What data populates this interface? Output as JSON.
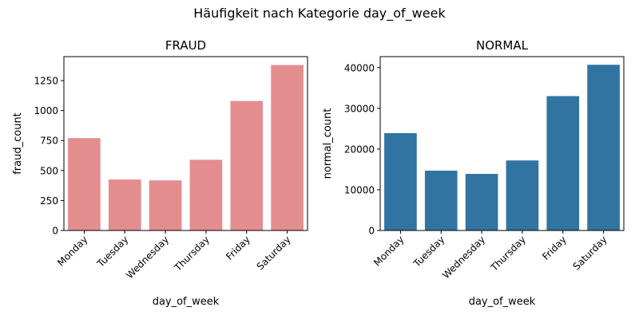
{
  "figure": {
    "suptitle": "Häufigkeit nach Kategorie day_of_week"
  },
  "chart_data": [
    {
      "type": "bar",
      "title": "FRAUD",
      "xlabel": "day_of_week",
      "ylabel": "fraud_count",
      "categories": [
        "Monday",
        "Tuesday",
        "Wednesday",
        "Thursday",
        "Friday",
        "Saturday"
      ],
      "values": [
        770,
        425,
        418,
        590,
        1080,
        1380
      ],
      "ylim": [
        0,
        1450
      ],
      "yticks": [
        0,
        250,
        500,
        750,
        1000,
        1250
      ],
      "ytick_labels": [
        "0",
        "250",
        "500",
        "750",
        "1000",
        "1250"
      ],
      "color": "#e38d8f",
      "grid": false
    },
    {
      "type": "bar",
      "title": "NORMAL",
      "xlabel": "day_of_week",
      "ylabel": "normal_count",
      "categories": [
        "Monday",
        "Tuesday",
        "Wednesday",
        "Thursday",
        "Friday",
        "Saturday"
      ],
      "values": [
        23900,
        14700,
        13900,
        17200,
        33000,
        40700
      ],
      "ylim": [
        0,
        42700
      ],
      "yticks": [
        0,
        10000,
        20000,
        30000,
        40000
      ],
      "ytick_labels": [
        "0",
        "10000",
        "20000",
        "30000",
        "40000"
      ],
      "color": "#3274a1",
      "grid": false
    }
  ]
}
